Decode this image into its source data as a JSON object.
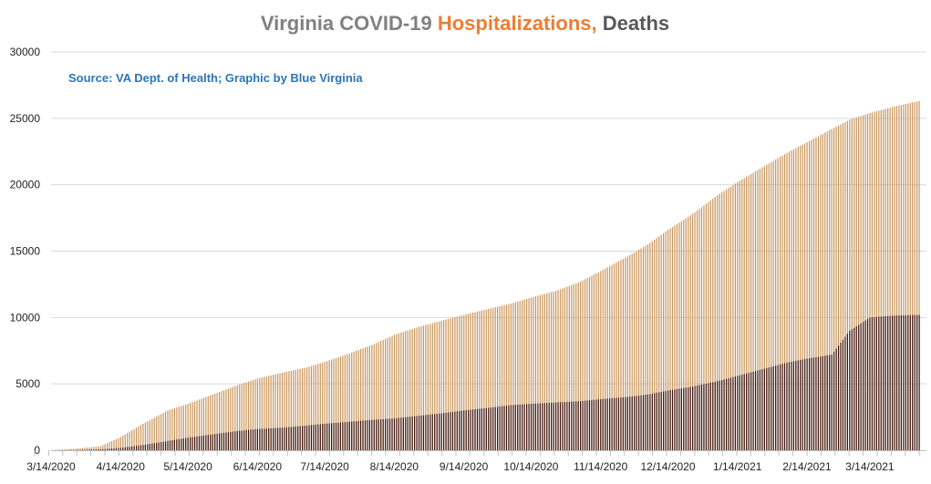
{
  "chart_data": {
    "type": "bar",
    "title_parts": [
      {
        "text": "Virginia COVID-19 ",
        "color": "#808080"
      },
      {
        "text": "Hospitalizations, ",
        "color": "#ed7d31"
      },
      {
        "text": "Deaths",
        "color": "#595959"
      }
    ],
    "source": "Source: VA Dept. of Health; Graphic by Blue Virginia",
    "ylim": [
      0,
      30000
    ],
    "yticks": [
      "0",
      "5000",
      "10000",
      "15000",
      "20000",
      "25000",
      "30000"
    ],
    "xticks": [
      "3/14/2020",
      "4/14/2020",
      "5/14/2020",
      "6/14/2020",
      "7/14/2020",
      "8/14/2020",
      "9/14/2020",
      "10/14/2020",
      "11/14/2020",
      "12/14/2020",
      "1/14/2021",
      "2/14/2021",
      "3/14/2021"
    ],
    "x_start": "3/14/2020",
    "x_end": "4/5/2021",
    "grid": true,
    "series": [
      {
        "name": "Hospitalizations",
        "color": "#c9945a",
        "points": [
          [
            "3/14/2020",
            10
          ],
          [
            "3/24/2020",
            100
          ],
          [
            "4/5/2020",
            300
          ],
          [
            "4/14/2020",
            1000
          ],
          [
            "4/24/2020",
            2000
          ],
          [
            "5/5/2020",
            3000
          ],
          [
            "5/14/2020",
            3500
          ],
          [
            "5/25/2020",
            4200
          ],
          [
            "6/5/2020",
            4900
          ],
          [
            "6/14/2020",
            5400
          ],
          [
            "6/25/2020",
            5850
          ],
          [
            "7/5/2020",
            6200
          ],
          [
            "7/14/2020",
            6650
          ],
          [
            "7/25/2020",
            7300
          ],
          [
            "8/5/2020",
            8000
          ],
          [
            "8/14/2020",
            8700
          ],
          [
            "8/25/2020",
            9300
          ],
          [
            "9/5/2020",
            9800
          ],
          [
            "9/14/2020",
            10200
          ],
          [
            "9/25/2020",
            10650
          ],
          [
            "10/5/2020",
            11050
          ],
          [
            "10/14/2020",
            11500
          ],
          [
            "10/25/2020",
            12000
          ],
          [
            "11/5/2020",
            12700
          ],
          [
            "11/14/2020",
            13500
          ],
          [
            "11/25/2020",
            14500
          ],
          [
            "12/5/2020",
            15500
          ],
          [
            "12/14/2020",
            16600
          ],
          [
            "12/25/2020",
            17800
          ],
          [
            "1/5/2021",
            19200
          ],
          [
            "1/14/2021",
            20200
          ],
          [
            "1/25/2021",
            21300
          ],
          [
            "2/5/2021",
            22400
          ],
          [
            "2/14/2021",
            23200
          ],
          [
            "2/25/2021",
            24200
          ],
          [
            "3/5/2021",
            24900
          ],
          [
            "3/14/2021",
            25400
          ],
          [
            "3/25/2021",
            25900
          ],
          [
            "4/5/2021",
            26300
          ]
        ]
      },
      {
        "name": "Deaths",
        "color": "#3c1510",
        "points": [
          [
            "3/14/2020",
            0
          ],
          [
            "3/24/2020",
            20
          ],
          [
            "4/5/2020",
            70
          ],
          [
            "4/14/2020",
            180
          ],
          [
            "4/24/2020",
            400
          ],
          [
            "5/5/2020",
            700
          ],
          [
            "5/14/2020",
            950
          ],
          [
            "5/25/2020",
            1200
          ],
          [
            "6/5/2020",
            1450
          ],
          [
            "6/14/2020",
            1600
          ],
          [
            "6/25/2020",
            1700
          ],
          [
            "7/5/2020",
            1850
          ],
          [
            "7/14/2020",
            2000
          ],
          [
            "7/25/2020",
            2150
          ],
          [
            "8/5/2020",
            2300
          ],
          [
            "8/14/2020",
            2400
          ],
          [
            "8/25/2020",
            2600
          ],
          [
            "9/5/2020",
            2800
          ],
          [
            "9/14/2020",
            3000
          ],
          [
            "9/25/2020",
            3200
          ],
          [
            "10/5/2020",
            3400
          ],
          [
            "10/14/2020",
            3500
          ],
          [
            "10/25/2020",
            3600
          ],
          [
            "11/5/2020",
            3700
          ],
          [
            "11/14/2020",
            3850
          ],
          [
            "11/25/2020",
            4000
          ],
          [
            "12/5/2020",
            4200
          ],
          [
            "12/14/2020",
            4500
          ],
          [
            "12/25/2020",
            4800
          ],
          [
            "1/5/2021",
            5200
          ],
          [
            "1/14/2021",
            5600
          ],
          [
            "1/25/2021",
            6100
          ],
          [
            "2/5/2021",
            6600
          ],
          [
            "2/14/2021",
            6900
          ],
          [
            "2/25/2021",
            7200
          ],
          [
            "3/5/2021",
            9000
          ],
          [
            "3/14/2021",
            10000
          ],
          [
            "3/25/2021",
            10150
          ],
          [
            "4/5/2021",
            10200
          ]
        ]
      }
    ]
  }
}
